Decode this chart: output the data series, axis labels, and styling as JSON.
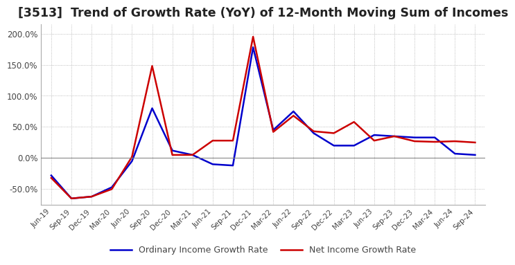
{
  "title": "[3513]  Trend of Growth Rate (YoY) of 12-Month Moving Sum of Incomes",
  "title_fontsize": 12.5,
  "ylim": [
    -75,
    215
  ],
  "yticks": [
    -50,
    0,
    50,
    100,
    150,
    200
  ],
  "background_color": "#ffffff",
  "grid_color": "#aaaaaa",
  "ordinary_color": "#0000cc",
  "net_color": "#cc0000",
  "legend_labels": [
    "Ordinary Income Growth Rate",
    "Net Income Growth Rate"
  ],
  "dates": [
    "Jun-19",
    "Sep-19",
    "Dec-19",
    "Mar-20",
    "Jun-20",
    "Sep-20",
    "Dec-20",
    "Mar-21",
    "Jun-21",
    "Sep-21",
    "Dec-21",
    "Mar-22",
    "Jun-22",
    "Sep-22",
    "Dec-22",
    "Mar-23",
    "Jun-23",
    "Sep-23",
    "Dec-23",
    "Mar-24",
    "Jun-24",
    "Sep-24"
  ],
  "ordinary_income": [
    -28,
    -65,
    -62,
    -47,
    -5,
    80,
    12,
    5,
    -10,
    -12,
    178,
    45,
    75,
    40,
    20,
    20,
    37,
    35,
    33,
    33,
    7,
    5
  ],
  "net_income": [
    -32,
    -65,
    -62,
    -50,
    2,
    148,
    5,
    5,
    28,
    28,
    195,
    42,
    68,
    43,
    40,
    58,
    28,
    35,
    27,
    26,
    27,
    25
  ]
}
